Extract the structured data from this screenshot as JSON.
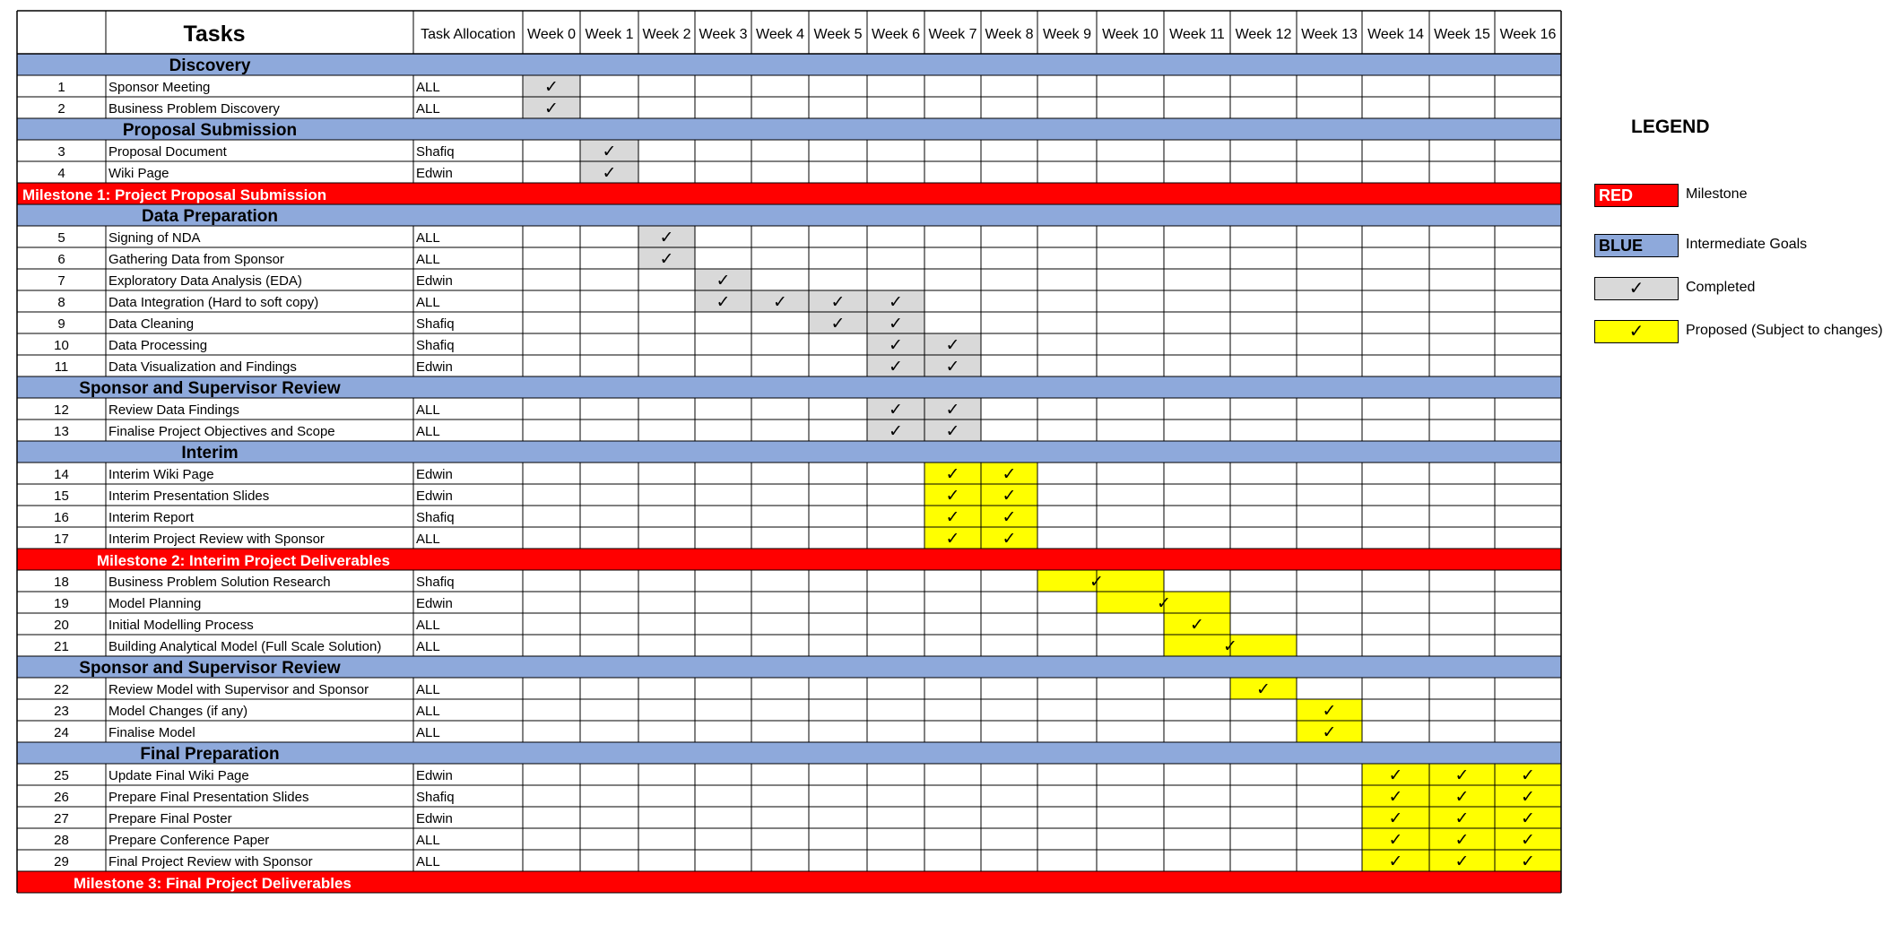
{
  "header": {
    "tasks": "Tasks",
    "allocation": "Task Allocation",
    "weeks": [
      "Week 0",
      "Week 1",
      "Week 2",
      "Week 3",
      "Week 4",
      "Week 5",
      "Week 6",
      "Week 7",
      "Week 8",
      "Week 9",
      "Week 10",
      "Week 11",
      "Week 12",
      "Week 13",
      "Week 14",
      "Week 15",
      "Week 16"
    ]
  },
  "check_glyph": "✓",
  "colors": {
    "milestone": "#FF0000",
    "goal": "#8EA9DB",
    "completed": "#D9D9D9",
    "proposed": "#FFFF00",
    "milestone_text": "#FFFFFF"
  },
  "rows": [
    {
      "type": "goal",
      "label": "Discovery"
    },
    {
      "type": "task",
      "num": "1",
      "name": "Sponsor Meeting",
      "alloc": "ALL",
      "status": "completed",
      "weeks": [
        0
      ]
    },
    {
      "type": "task",
      "num": "2",
      "name": "Business Problem Discovery",
      "alloc": "ALL",
      "status": "completed",
      "weeks": [
        0
      ]
    },
    {
      "type": "goal",
      "label": "Proposal Submission"
    },
    {
      "type": "task",
      "num": "3",
      "name": "Proposal Document",
      "alloc": "Shafiq",
      "status": "completed",
      "weeks": [
        1
      ]
    },
    {
      "type": "task",
      "num": "4",
      "name": "Wiki Page",
      "alloc": "Edwin",
      "status": "completed",
      "weeks": [
        1
      ]
    },
    {
      "type": "milestone",
      "label": "Milestone 1: Project Proposal Submission"
    },
    {
      "type": "goal",
      "label": "Data Preparation"
    },
    {
      "type": "task",
      "num": "5",
      "name": "Signing of NDA",
      "alloc": "ALL",
      "status": "completed",
      "weeks": [
        2
      ]
    },
    {
      "type": "task",
      "num": "6",
      "name": "Gathering Data from Sponsor",
      "alloc": "ALL",
      "status": "completed",
      "weeks": [
        2
      ]
    },
    {
      "type": "task",
      "num": "7",
      "name": "Exploratory Data Analysis (EDA)",
      "alloc": "Edwin",
      "status": "completed",
      "weeks": [
        3
      ]
    },
    {
      "type": "task",
      "num": "8",
      "name": "Data Integration (Hard to soft copy)",
      "alloc": "ALL",
      "status": "completed",
      "weeks": [
        3,
        4,
        5,
        6
      ]
    },
    {
      "type": "task",
      "num": "9",
      "name": "Data Cleaning",
      "alloc": "Shafiq",
      "status": "completed",
      "weeks": [
        5,
        6
      ]
    },
    {
      "type": "task",
      "num": "10",
      "name": "Data Processing",
      "alloc": "Shafiq",
      "status": "completed",
      "weeks": [
        6,
        7
      ]
    },
    {
      "type": "task",
      "num": "11",
      "name": "Data Visualization and Findings",
      "alloc": "Edwin",
      "status": "completed",
      "weeks": [
        6,
        7
      ]
    },
    {
      "type": "goal",
      "label": "Sponsor and Supervisor Review"
    },
    {
      "type": "task",
      "num": "12",
      "name": "Review Data Findings",
      "alloc": "ALL",
      "status": "completed",
      "weeks": [
        6,
        7
      ]
    },
    {
      "type": "task",
      "num": "13",
      "name": "Finalise Project Objectives and Scope",
      "alloc": "ALL",
      "status": "completed",
      "weeks": [
        6,
        7
      ]
    },
    {
      "type": "goal",
      "label": "Interim"
    },
    {
      "type": "task",
      "num": "14",
      "name": "Interim Wiki Page",
      "alloc": "Edwin",
      "status": "proposed",
      "weeks": [
        7,
        8
      ]
    },
    {
      "type": "task",
      "num": "15",
      "name": "Interim Presentation Slides",
      "alloc": "Edwin",
      "status": "proposed",
      "weeks": [
        7,
        8
      ]
    },
    {
      "type": "task",
      "num": "16",
      "name": "Interim Report",
      "alloc": "Shafiq",
      "status": "proposed",
      "weeks": [
        7,
        8
      ]
    },
    {
      "type": "task",
      "num": "17",
      "name": "Interim Project Review with Sponsor",
      "alloc": "ALL",
      "status": "proposed",
      "weeks": [
        7,
        8
      ]
    },
    {
      "type": "milestone",
      "label": "Milestone 2: Interim Project Deliverables"
    },
    {
      "type": "task",
      "num": "18",
      "name": "Business Problem Solution Research",
      "alloc": "Shafiq",
      "status": "proposed",
      "weeks": [
        9,
        10
      ]
    },
    {
      "type": "task",
      "num": "19",
      "name": "Model Planning",
      "alloc": "Edwin",
      "status": "proposed",
      "weeks": [
        10,
        11
      ]
    },
    {
      "type": "task",
      "num": "20",
      "name": "Initial Modelling Process",
      "alloc": "ALL",
      "status": "proposed",
      "weeks": [
        11
      ]
    },
    {
      "type": "task",
      "num": "21",
      "name": "Building Analytical Model (Full Scale Solution)",
      "alloc": "ALL",
      "status": "proposed",
      "weeks": [
        11,
        12
      ]
    },
    {
      "type": "goal",
      "label": "Sponsor and Supervisor Review"
    },
    {
      "type": "task",
      "num": "22",
      "name": "Review Model with Supervisor and Sponsor",
      "alloc": "ALL",
      "status": "proposed",
      "weeks": [
        12
      ]
    },
    {
      "type": "task",
      "num": "23",
      "name": "Model Changes (if any)",
      "alloc": "ALL",
      "status": "proposed",
      "weeks": [
        13
      ]
    },
    {
      "type": "task",
      "num": "24",
      "name": "Finalise Model",
      "alloc": "ALL",
      "status": "proposed",
      "weeks": [
        13
      ]
    },
    {
      "type": "goal",
      "label": "Final Preparation"
    },
    {
      "type": "task",
      "num": "25",
      "name": "Update Final Wiki Page",
      "alloc": "Edwin",
      "status": "proposed",
      "weeks": [
        14,
        15,
        16
      ]
    },
    {
      "type": "task",
      "num": "26",
      "name": "Prepare Final Presentation Slides",
      "alloc": "Shafiq",
      "status": "proposed",
      "weeks": [
        14,
        15,
        16
      ]
    },
    {
      "type": "task",
      "num": "27",
      "name": "Prepare Final Poster",
      "alloc": "Edwin",
      "status": "proposed",
      "weeks": [
        14,
        15,
        16
      ]
    },
    {
      "type": "task",
      "num": "28",
      "name": "Prepare Conference Paper",
      "alloc": "ALL",
      "status": "proposed",
      "weeks": [
        14,
        15,
        16
      ]
    },
    {
      "type": "task",
      "num": "29",
      "name": "Final Project Review with Sponsor",
      "alloc": "ALL",
      "status": "proposed",
      "weeks": [
        14,
        15,
        16
      ]
    },
    {
      "type": "milestone",
      "label": "Milestone 3: Final Project Deliverables"
    }
  ],
  "legend": {
    "title": "LEGEND",
    "items": [
      {
        "box_text": "RED",
        "label": "Milestone",
        "kind": "milestone"
      },
      {
        "box_text": "BLUE",
        "label": "Intermediate Goals",
        "kind": "goal"
      },
      {
        "box_text": "✓",
        "label": "Completed",
        "kind": "completed"
      },
      {
        "box_text": "✓",
        "label": "Proposed (Subject to changes)",
        "kind": "proposed"
      }
    ]
  }
}
